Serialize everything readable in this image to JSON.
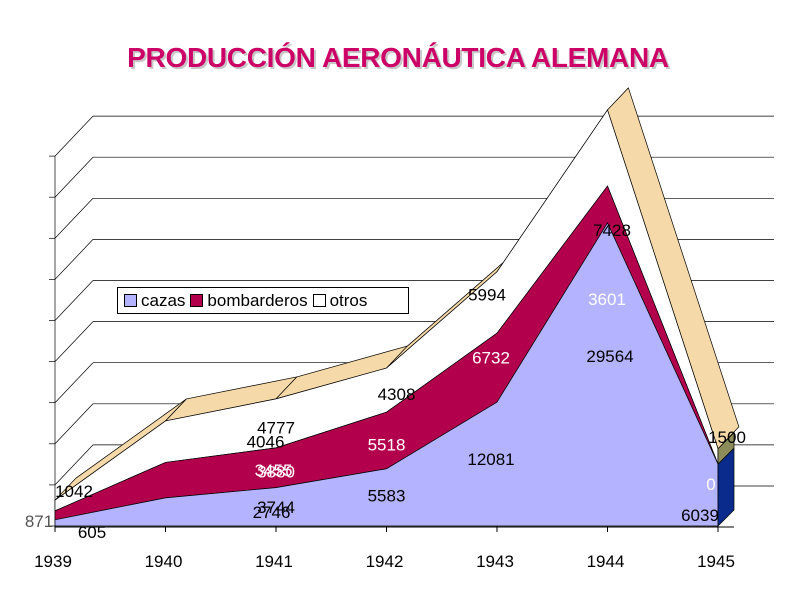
{
  "title": "PRODUCCIÓN AERONÁUTICA ALEMANA",
  "chart_data": {
    "type": "area",
    "stacked": true,
    "three_d": true,
    "categories": [
      "1939",
      "1940",
      "1941",
      "1942",
      "1943",
      "1944",
      "1945"
    ],
    "series": [
      {
        "name": "cazas",
        "color": "#b3b3ff",
        "values": [
          605,
          2746,
          3744,
          5583,
          12081,
          29564,
          6039
        ]
      },
      {
        "name": "bombarderos",
        "color": "#b3004d",
        "values": [
          871,
          3455,
          3880,
          5518,
          6732,
          3601,
          0
        ]
      },
      {
        "name": "otros",
        "color": "#ffffff",
        "top_color": "#f5d9a8",
        "values": [
          1042,
          4046,
          4777,
          4308,
          5994,
          7428,
          1500
        ]
      }
    ],
    "legend": {
      "position": "upper-left",
      "orientation": "horizontal"
    },
    "grid": true
  }
}
